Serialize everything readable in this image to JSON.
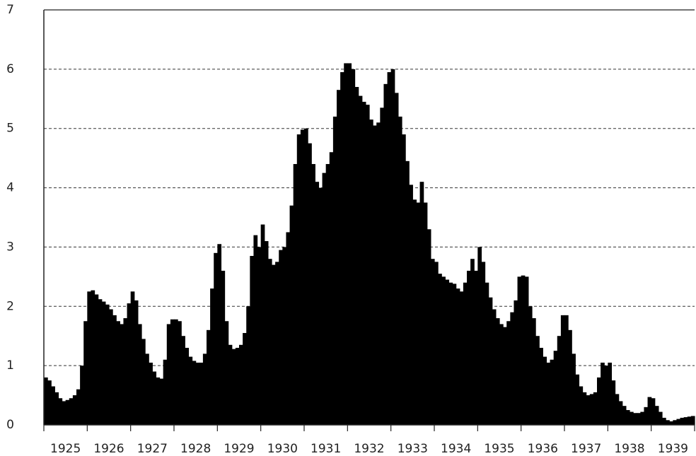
{
  "chart_data": {
    "type": "bar",
    "color": "#000000",
    "categories": [
      "1925",
      "1926",
      "1927",
      "1928",
      "1929",
      "1930",
      "1931",
      "1932",
      "1933",
      "1934",
      "1935",
      "1936",
      "1937",
      "1938",
      "1939"
    ],
    "values": [
      [
        0.8,
        0.75,
        0.65,
        0.55,
        0.45,
        0.4,
        0.42,
        0.45,
        0.5,
        0.6,
        1.0,
        1.75
      ],
      [
        2.25,
        2.27,
        2.2,
        2.12,
        2.08,
        2.03,
        1.95,
        1.85,
        1.75,
        1.7,
        1.8,
        2.05
      ],
      [
        2.25,
        2.1,
        1.7,
        1.45,
        1.2,
        1.05,
        0.9,
        0.8,
        0.78,
        1.1,
        1.7,
        1.78
      ],
      [
        1.78,
        1.75,
        1.5,
        1.3,
        1.15,
        1.08,
        1.05,
        1.05,
        1.2,
        1.6,
        2.3,
        2.9
      ],
      [
        3.05,
        2.6,
        1.75,
        1.35,
        1.28,
        1.3,
        1.35,
        1.55,
        2.0,
        2.85,
        3.2,
        3.0
      ],
      [
        3.38,
        3.1,
        2.8,
        2.7,
        2.75,
        2.95,
        3.0,
        3.25,
        3.7,
        4.4,
        4.9,
        4.98
      ],
      [
        5.0,
        4.75,
        4.4,
        4.1,
        4.0,
        4.25,
        4.4,
        4.6,
        5.2,
        5.65,
        5.95,
        6.1
      ],
      [
        6.1,
        6.0,
        5.7,
        5.55,
        5.45,
        5.4,
        5.15,
        5.05,
        5.1,
        5.35,
        5.75,
        5.95
      ],
      [
        6.0,
        5.6,
        5.2,
        4.9,
        4.45,
        4.05,
        3.8,
        3.75,
        4.1,
        3.75,
        3.3,
        2.8
      ],
      [
        2.75,
        2.55,
        2.5,
        2.45,
        2.4,
        2.38,
        2.3,
        2.25,
        2.4,
        2.6,
        2.8,
        2.6
      ],
      [
        3.0,
        2.75,
        2.4,
        2.15,
        1.95,
        1.8,
        1.7,
        1.65,
        1.75,
        1.9,
        2.1,
        2.5
      ],
      [
        2.52,
        2.5,
        2.0,
        1.8,
        1.5,
        1.3,
        1.15,
        1.05,
        1.1,
        1.25,
        1.5,
        1.85
      ],
      [
        1.85,
        1.6,
        1.2,
        0.85,
        0.65,
        0.55,
        0.5,
        0.52,
        0.55,
        0.8,
        1.05,
        1.0
      ],
      [
        1.05,
        0.75,
        0.52,
        0.4,
        0.32,
        0.25,
        0.22,
        0.2,
        0.2,
        0.22,
        0.3,
        0.47
      ],
      [
        0.45,
        0.32,
        0.22,
        0.12,
        0.08,
        0.06,
        0.08,
        0.1,
        0.12,
        0.13,
        0.14,
        0.15
      ]
    ],
    "ylim": [
      0,
      7
    ],
    "yticks": [
      0,
      1,
      2,
      3,
      4,
      5,
      6,
      7
    ],
    "grid": true
  }
}
